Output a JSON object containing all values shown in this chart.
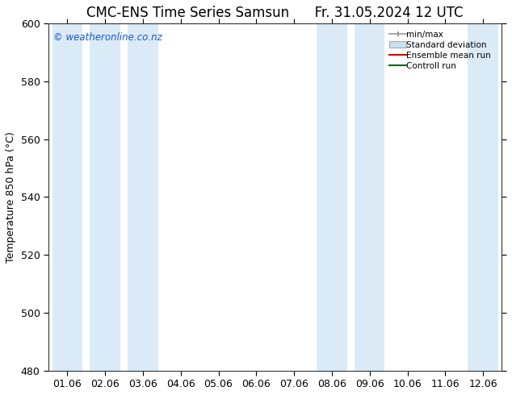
{
  "title_left": "CMC-ENS Time Series Samsun",
  "title_right": "Fr. 31.05.2024 12 UTC",
  "ylabel": "Temperature 850 hPa (°C)",
  "ylim": [
    480,
    600
  ],
  "yticks": [
    480,
    500,
    520,
    540,
    560,
    580,
    600
  ],
  "xtick_labels": [
    "01.06",
    "02.06",
    "03.06",
    "04.06",
    "05.06",
    "06.06",
    "07.06",
    "08.06",
    "09.06",
    "10.06",
    "11.06",
    "12.06"
  ],
  "watermark": "© weatheronline.co.nz",
  "watermark_color": "#1a56cc",
  "bg_color": "#ffffff",
  "plot_bg_color": "#ffffff",
  "shaded_band_color": "#daeaf7",
  "shaded_columns_x": [
    0,
    1,
    2,
    7,
    8,
    11
  ],
  "legend_entries": [
    "min/max",
    "Standard deviation",
    "Ensemble mean run",
    "Controll run"
  ],
  "legend_line_colors": [
    "#999999",
    "#aaaaaa",
    "#dd0000",
    "#006600"
  ],
  "title_fontsize": 12,
  "label_fontsize": 9,
  "tick_fontsize": 9
}
